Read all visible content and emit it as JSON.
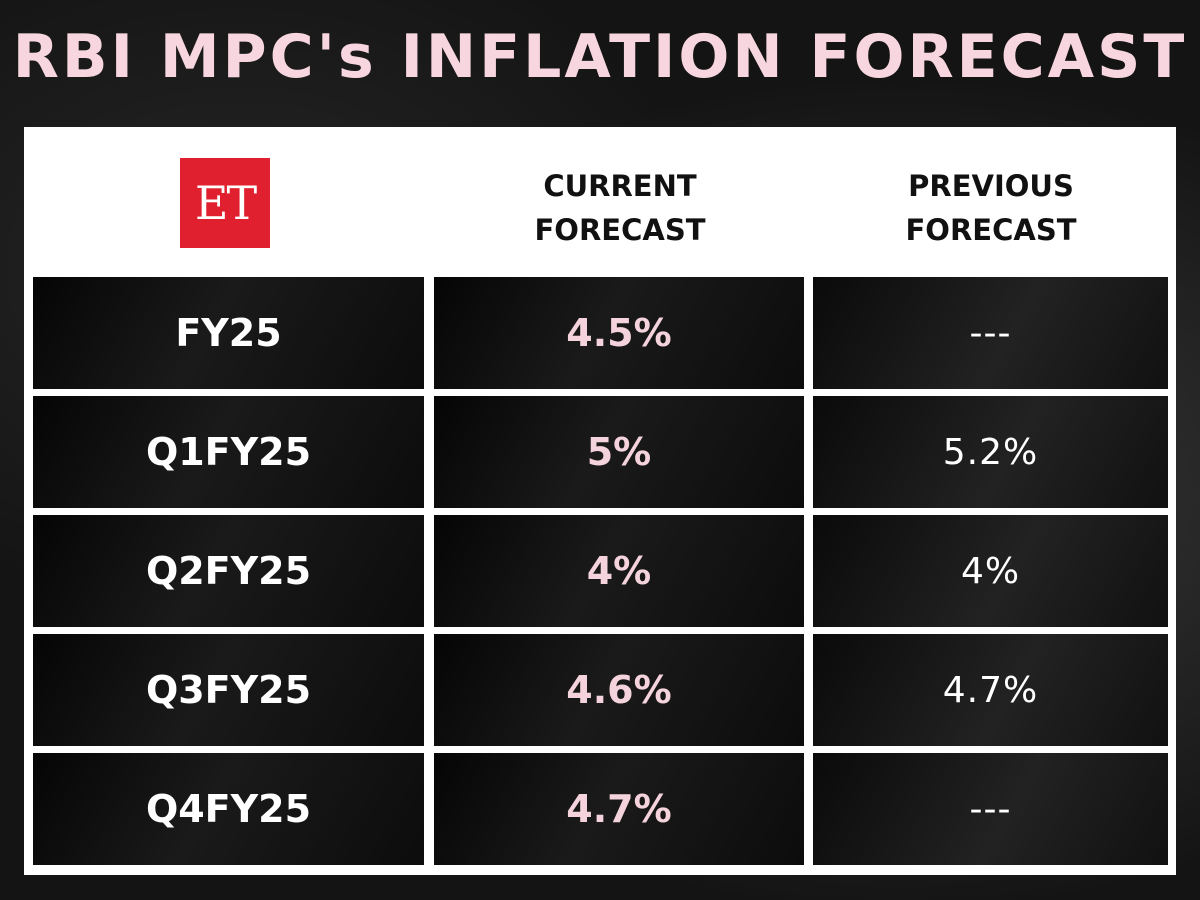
{
  "title": "RBI MPC's INFLATION FORECAST",
  "logo_text": "ET",
  "colors": {
    "title": "#f7d6df",
    "current_values": "#f5d3dd",
    "logo_bg": "#e0202e",
    "table_bg": "#ffffff"
  },
  "chart_data": {
    "type": "table",
    "title": "RBI MPC's INFLATION FORECAST",
    "columns": [
      [
        "CURRENT",
        "FORECAST"
      ],
      [
        "PREVIOUS",
        "FORECAST"
      ]
    ],
    "rows": [
      {
        "label": "FY25",
        "current": "4.5%",
        "previous": "---"
      },
      {
        "label": "Q1FY25",
        "current": "5%",
        "previous": "5.2%"
      },
      {
        "label": "Q2FY25",
        "current": "4%",
        "previous": "4%"
      },
      {
        "label": "Q3FY25",
        "current": "4.6%",
        "previous": "4.7%"
      },
      {
        "label": "Q4FY25",
        "current": "4.7%",
        "previous": "---"
      }
    ]
  }
}
